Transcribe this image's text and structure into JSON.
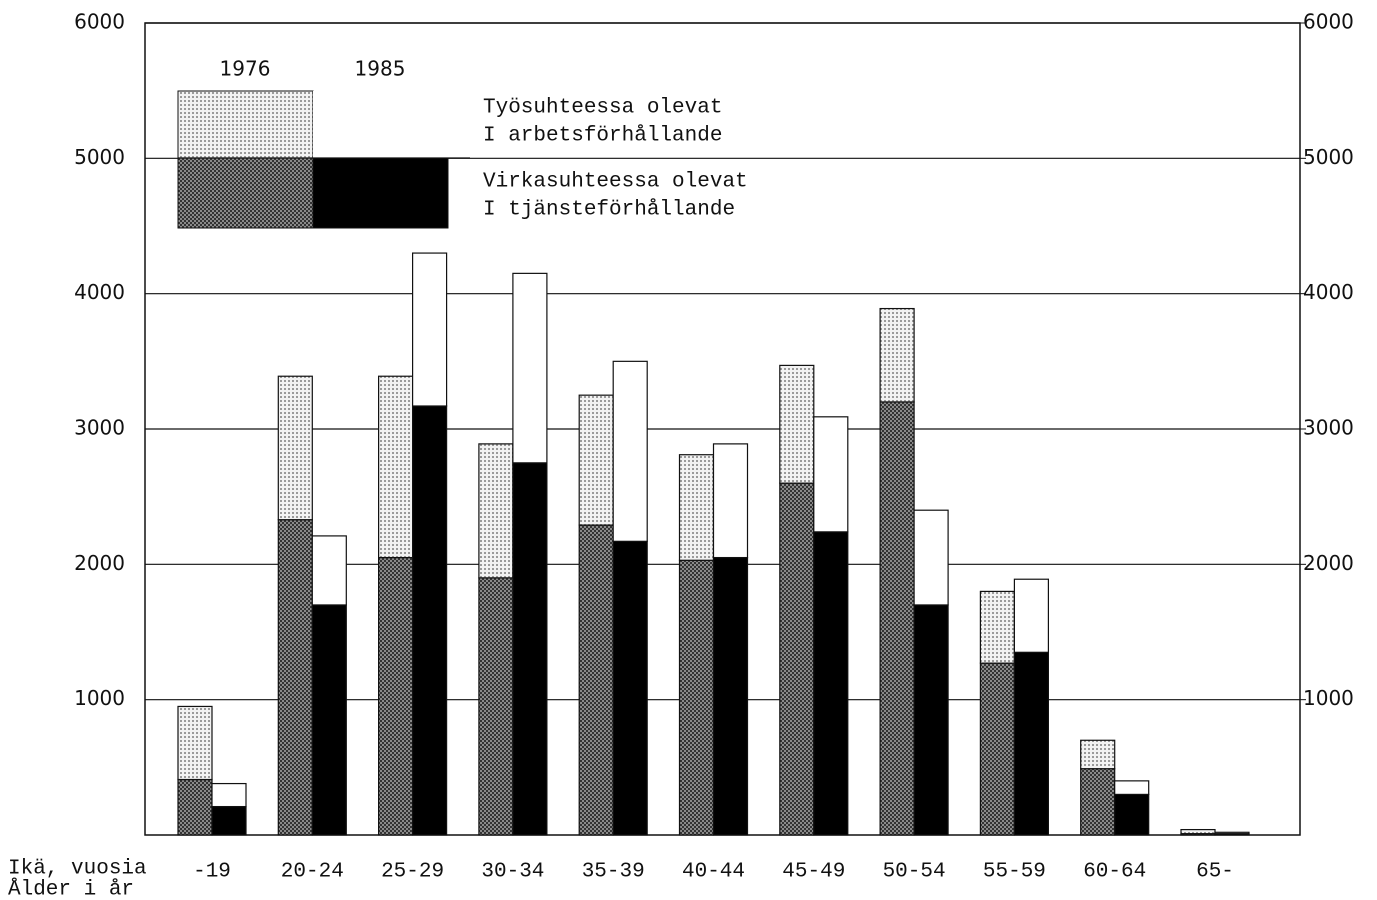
{
  "chart_data": {
    "type": "grouped_stacked_bar",
    "categories": [
      "-19",
      "20-24",
      "25-29",
      "30-34",
      "35-39",
      "40-44",
      "45-49",
      "50-54",
      "55-59",
      "60-64",
      "65-"
    ],
    "segment_names": [
      {
        "fi": "Virkasuhteessa olevat",
        "sv": "I tjänsteförhållande"
      },
      {
        "fi": "Työsuhteessa olevat",
        "sv": "I arbetsförhållande"
      }
    ],
    "series": [
      {
        "name": "1976",
        "segments": [
          {
            "color": "#555555",
            "pattern": "checker",
            "values": [
              410,
              2330,
              2050,
              1900,
              2290,
              2030,
              2600,
              3200,
              1270,
              490,
              10
            ]
          },
          {
            "color": "#d8d8d8",
            "pattern": "dots",
            "values": [
              540,
              1060,
              1340,
              990,
              960,
              780,
              870,
              690,
              530,
              210,
              30
            ]
          }
        ]
      },
      {
        "name": "1985",
        "segments": [
          {
            "color": "#000000",
            "pattern": "solid",
            "values": [
              210,
              1700,
              3170,
              2750,
              2170,
              2050,
              2240,
              1700,
              1350,
              300,
              10
            ]
          },
          {
            "color": "#ffffff",
            "pattern": "solid",
            "values": [
              170,
              510,
              1130,
              1400,
              1330,
              840,
              850,
              700,
              540,
              100,
              10
            ]
          }
        ]
      }
    ],
    "x_label": [
      "Ikä, vuosia",
      "Ålder i år"
    ],
    "ylim": [
      0,
      6000
    ],
    "yticks": [
      1000,
      2000,
      3000,
      4000,
      5000,
      6000
    ],
    "y2lim": [
      0,
      6000
    ],
    "y2ticks": [
      1000,
      2000,
      3000,
      4000,
      5000,
      6000
    ],
    "grid": true
  }
}
